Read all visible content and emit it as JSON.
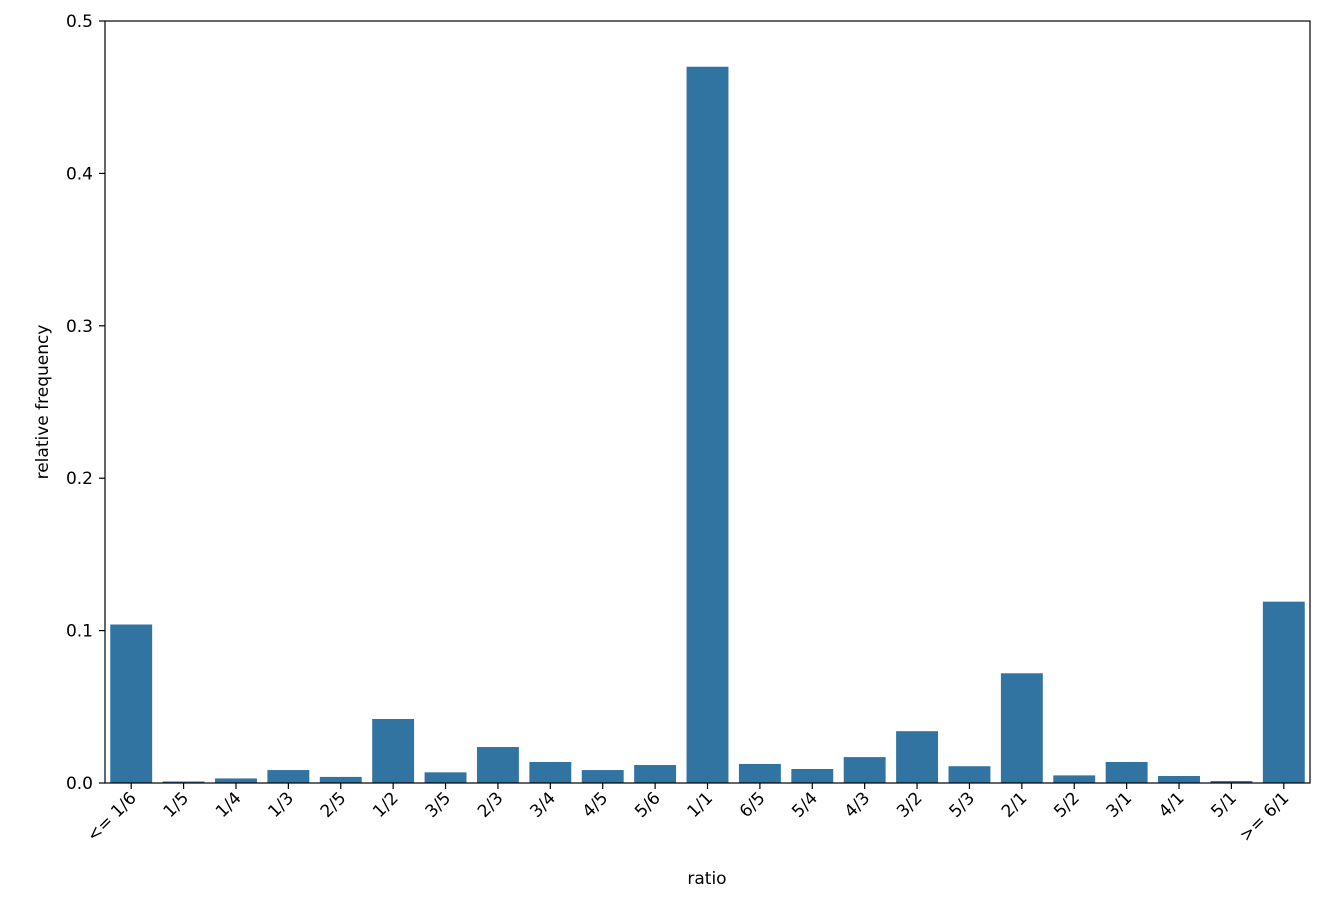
{
  "chart_data": {
    "type": "bar",
    "x_label": "ratio",
    "y_label": "relative frequency",
    "categories": [
      "<= 1/6",
      "1/5",
      "1/4",
      "1/3",
      "2/5",
      "1/2",
      "3/5",
      "2/3",
      "3/4",
      "4/5",
      "5/6",
      "1/1",
      "6/5",
      "5/4",
      "4/3",
      "3/2",
      "5/3",
      "2/1",
      "5/2",
      "3/1",
      "4/1",
      "5/1",
      ">= 6/1"
    ],
    "values": [
      0.104,
      0.001,
      0.003,
      0.0085,
      0.004,
      0.042,
      0.007,
      0.0236,
      0.0138,
      0.0085,
      0.0118,
      0.47,
      0.0125,
      0.0092,
      0.017,
      0.034,
      0.011,
      0.072,
      0.005,
      0.0138,
      0.0046,
      0.0013,
      0.119
    ],
    "color": "#3274a1",
    "ylim": [
      0,
      0.5
    ],
    "yticks": [
      {
        "value": 0,
        "label": "0.0"
      },
      0.1,
      0.2,
      0.3,
      0.4,
      0.5
    ],
    "grid": false
  }
}
